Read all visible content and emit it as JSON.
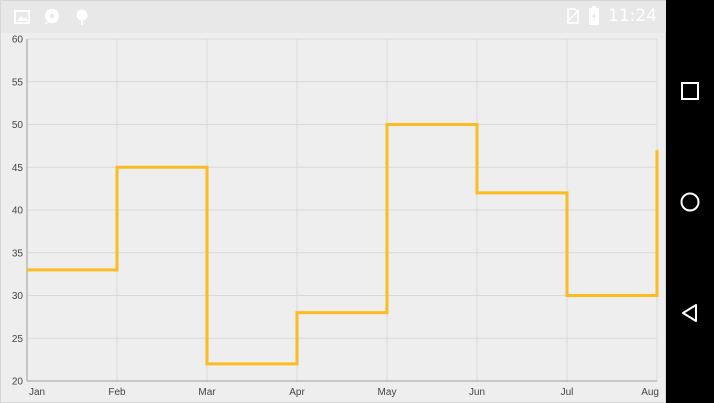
{
  "status_bar": {
    "time": "11:24",
    "left_icons": [
      "image-icon",
      "chat-icon",
      "location-pin-icon"
    ],
    "right_icons": [
      "no-sim-icon",
      "battery-icon"
    ]
  },
  "navigation_bar": {
    "buttons": [
      "recents-button",
      "home-button",
      "back-button"
    ]
  },
  "chart_data": {
    "type": "line",
    "style": "step",
    "categories": [
      "Jan",
      "Feb",
      "Mar",
      "Apr",
      "May",
      "Jun",
      "Jul",
      "Aug"
    ],
    "series": [
      {
        "values": [
          33,
          45,
          22,
          28,
          50,
          42,
          30,
          47
        ],
        "color": "#FBBC21"
      }
    ],
    "yticks": [
      "20",
      "25",
      "30",
      "35",
      "40",
      "45",
      "50",
      "55",
      "60"
    ],
    "ylim": [
      20,
      60
    ],
    "grid": true,
    "legend": "none",
    "title": "",
    "xlabel": "",
    "ylabel": ""
  }
}
